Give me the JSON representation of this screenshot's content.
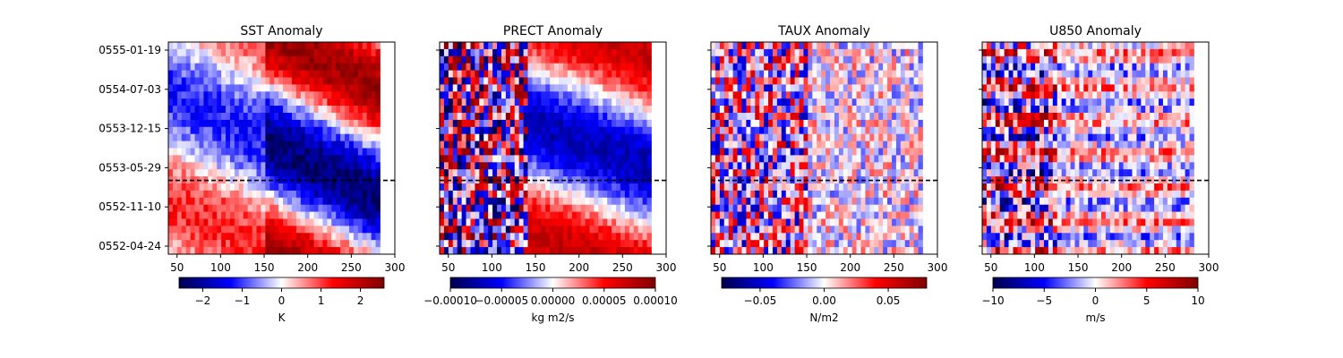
{
  "chart_data": [
    {
      "type": "heatmap",
      "title": "SST Anomaly",
      "x_ticks": [
        50,
        100,
        150,
        200,
        250,
        300
      ],
      "xlim": [
        40,
        300
      ],
      "y_tick_labels": [
        "0555-01-19",
        "0554-07-03",
        "0553-12-15",
        "0553-05-29",
        "0552-11-10",
        "0552-04-24"
      ],
      "colorbar": {
        "label": "K",
        "range": [
          -2.6,
          2.6
        ],
        "ticks": [
          -2,
          -1,
          0,
          1,
          2
        ],
        "tick_labels": [
          "−2",
          "−1",
          "0",
          "1",
          "2"
        ],
        "colormap": "seismic"
      },
      "reference_line": {
        "style": "dashed",
        "color": "#000000"
      }
    },
    {
      "type": "heatmap",
      "title": "PRECT Anomaly",
      "x_ticks": [
        50,
        100,
        150,
        200,
        250,
        300
      ],
      "xlim": [
        40,
        300
      ],
      "y_tick_labels": [
        "0555-01-19",
        "0554-07-03",
        "0553-12-15",
        "0553-05-29",
        "0552-11-10",
        "0552-04-24"
      ],
      "colorbar": {
        "label": "kg m2/s",
        "range": [
          -0.0001,
          0.0001
        ],
        "ticks": [
          -0.0001,
          -5e-05,
          0,
          5e-05,
          0.0001
        ],
        "tick_labels": [
          "−0.00010",
          "−0.00005",
          "0.00000",
          "0.00005",
          "0.00010"
        ],
        "colormap": "seismic"
      },
      "reference_line": {
        "style": "dashed",
        "color": "#000000"
      }
    },
    {
      "type": "heatmap",
      "title": "TAUX Anomaly",
      "x_ticks": [
        50,
        100,
        150,
        200,
        250,
        300
      ],
      "xlim": [
        40,
        300
      ],
      "y_tick_labels": [
        "0555-01-19",
        "0554-07-03",
        "0553-12-15",
        "0553-05-29",
        "0552-11-10",
        "0552-04-24"
      ],
      "colorbar": {
        "label": "N/m2",
        "range": [
          -0.08,
          0.08
        ],
        "ticks": [
          -0.05,
          0,
          0.05
        ],
        "tick_labels": [
          "−0.05",
          "0.00",
          "0.05"
        ],
        "colormap": "seismic"
      },
      "reference_line": {
        "style": "dashed",
        "color": "#000000"
      }
    },
    {
      "type": "heatmap",
      "title": "U850 Anomaly",
      "x_ticks": [
        50,
        100,
        150,
        200,
        250,
        300
      ],
      "xlim": [
        40,
        300
      ],
      "y_tick_labels": [
        "0555-01-19",
        "0554-07-03",
        "0553-12-15",
        "0553-05-29",
        "0552-11-10",
        "0552-04-24"
      ],
      "colorbar": {
        "label": "m/s",
        "range": [
          -10,
          10
        ],
        "ticks": [
          -10,
          -5,
          0,
          5,
          10
        ],
        "tick_labels": [
          "−10",
          "−5",
          "0",
          "5",
          "10"
        ],
        "colormap": "seismic"
      },
      "reference_line": {
        "style": "dashed",
        "color": "#000000"
      }
    }
  ]
}
